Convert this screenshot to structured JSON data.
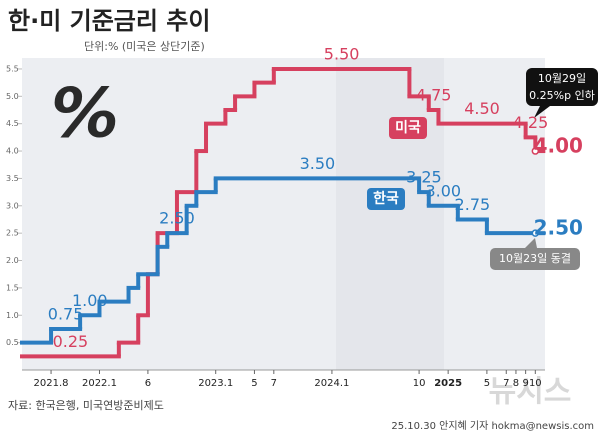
{
  "chart_data": {
    "type": "step",
    "title": "한·미 기준금리 추이",
    "subtitle": "단위:% (미국은 상단기준)",
    "source": "자료: 한국은행, 미국연방준비제도",
    "credit": "25.10.30 안지혜 기자 hokma@newsis.com",
    "watermark": "뉴시스",
    "icon": "%",
    "annotations": [
      "10월29일",
      "0.25%p 인하",
      "10월23일 동결"
    ],
    "xlim": [
      "2021.5",
      "2025.11"
    ],
    "xticks": [
      "2021.8",
      "2022.1",
      {
        "value": "2022.6",
        "label": "6"
      },
      "2023.1",
      {
        "value": "2023.5",
        "label": "5"
      },
      {
        "value": "2023.7",
        "label": "7"
      },
      "2024.1",
      {
        "value": "2024.10",
        "label": "10"
      },
      "2025",
      {
        "value": "2025.5",
        "label": "5"
      },
      {
        "value": "2025.7",
        "label": "7"
      },
      {
        "value": "2025.8",
        "label": "8"
      },
      {
        "value": "2025.9",
        "label": "9"
      },
      {
        "value": "2025.10",
        "label": "10"
      }
    ],
    "ylim": [
      0,
      5.7
    ],
    "yticks": [
      0.5,
      {
        "value": 1,
        "label": "1.0"
      },
      1.5,
      {
        "value": 2,
        "label": "2.0"
      },
      2.5,
      {
        "value": 3,
        "label": "3.0"
      },
      3.5,
      {
        "value": 4,
        "label": "4.0"
      },
      4.5,
      {
        "value": 5,
        "label": "5.0"
      },
      5.5
    ],
    "grid": false,
    "series": [
      {
        "name": "미국",
        "color": "#d6405f",
        "x": [
          "2021.5",
          "2022.3",
          "2022.5",
          "2022.6",
          "2022.7",
          "2022.9",
          "2022.11",
          "2022.12",
          "2023.2",
          "2023.3",
          "2023.5",
          "2023.7",
          "2024.9",
          "2024.11",
          "2024.12",
          "2025.9",
          "2025.10"
        ],
        "values": [
          0.25,
          0.5,
          1.0,
          1.75,
          2.5,
          3.25,
          4.0,
          4.5,
          4.75,
          5.0,
          5.25,
          5.5,
          5.0,
          4.75,
          4.5,
          4.25,
          4.0
        ],
        "value_labels": [
          "0.25",
          null,
          null,
          null,
          null,
          null,
          null,
          null,
          null,
          null,
          null,
          "5.50",
          null,
          "4.75",
          "4.50",
          "4.25",
          "4.00"
        ]
      },
      {
        "name": "한국",
        "color": "#2b7dc1",
        "x": [
          "2021.5",
          "2021.8",
          "2021.11",
          "2022.1",
          "2022.4",
          "2022.5",
          "2022.7",
          "2022.8",
          "2022.10",
          "2022.11",
          "2023.1",
          "2024.10",
          "2024.11",
          "2025.2",
          "2025.5",
          "2025.10"
        ],
        "values": [
          0.5,
          0.75,
          1.0,
          1.25,
          1.5,
          1.75,
          2.25,
          2.5,
          3.0,
          3.25,
          3.5,
          3.25,
          3.0,
          2.75,
          2.5,
          2.5
        ],
        "value_labels": [
          null,
          "0.75",
          "1.00",
          null,
          null,
          null,
          null,
          "2.50",
          null,
          null,
          "3.50",
          "3.25",
          "3.00",
          "2.75",
          null,
          "2.50"
        ]
      }
    ]
  }
}
